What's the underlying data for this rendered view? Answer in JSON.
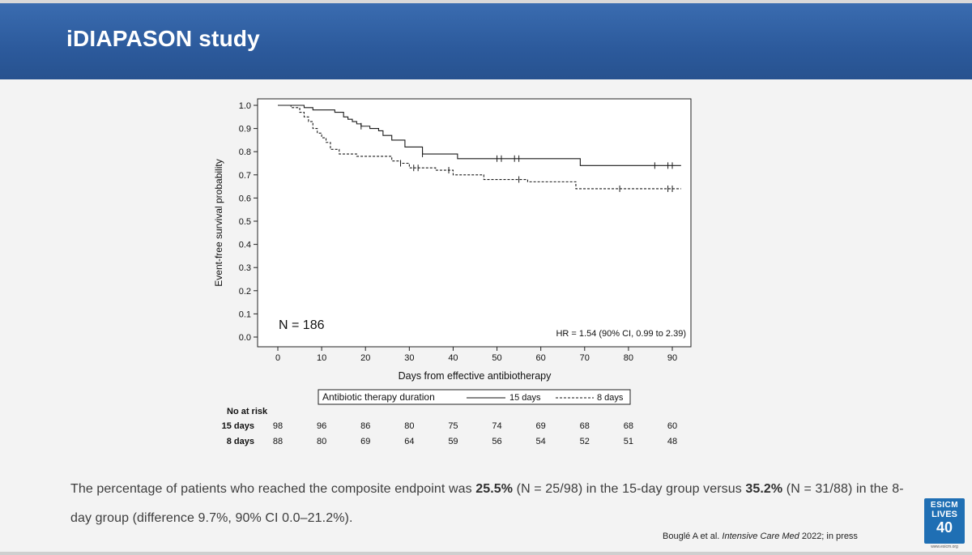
{
  "slide": {
    "title": "iDIAPASON study"
  },
  "chart_data": {
    "type": "line",
    "step": true,
    "ylabel": "Event-free survival probability",
    "xlabel": "Days from effective antibiotherapy",
    "ylim": [
      0.0,
      1.0
    ],
    "xlim": [
      -5,
      92
    ],
    "yticks": [
      "0.0",
      "0.1",
      "0.2",
      "0.3",
      "0.4",
      "0.5",
      "0.6",
      "0.7",
      "0.8",
      "0.9",
      "1.0"
    ],
    "xticks": [
      "0",
      "10",
      "20",
      "30",
      "40",
      "50",
      "60",
      "70",
      "80",
      "90"
    ],
    "annotation_n": "N = 186",
    "annotation_hr": "HR = 1.54 (90% CI, 0.99 to 2.39)",
    "legend_title": "Antibiotic therapy duration",
    "series": [
      {
        "name": "15 days",
        "style": "solid",
        "x": [
          0,
          3,
          6,
          8,
          10,
          13,
          15,
          16,
          17,
          18,
          19,
          21,
          23,
          24,
          26,
          29,
          33,
          41,
          69,
          92
        ],
        "y": [
          1.0,
          1.0,
          0.99,
          0.98,
          0.98,
          0.97,
          0.95,
          0.94,
          0.93,
          0.92,
          0.91,
          0.9,
          0.89,
          0.87,
          0.85,
          0.82,
          0.79,
          0.77,
          0.74,
          0.74
        ],
        "censor_x": [
          19,
          33,
          50,
          51,
          54,
          55,
          86,
          89,
          90
        ]
      },
      {
        "name": "8 days",
        "style": "dashed",
        "x": [
          0,
          3,
          5,
          6,
          7,
          8,
          9,
          10,
          11,
          12,
          14,
          18,
          26,
          28,
          30,
          36,
          40,
          47,
          57,
          68,
          92
        ],
        "y": [
          1.0,
          0.99,
          0.97,
          0.95,
          0.93,
          0.9,
          0.88,
          0.86,
          0.84,
          0.81,
          0.79,
          0.78,
          0.76,
          0.75,
          0.73,
          0.72,
          0.7,
          0.68,
          0.67,
          0.64,
          0.64
        ],
        "censor_x": [
          28,
          31,
          32,
          39,
          55,
          78,
          89,
          90
        ]
      }
    ]
  },
  "risk_table": {
    "header": "No at risk",
    "rows": [
      {
        "label": "15 days",
        "values": [
          "98",
          "96",
          "86",
          "80",
          "75",
          "74",
          "69",
          "68",
          "68",
          "60"
        ]
      },
      {
        "label": "8 days",
        "values": [
          "88",
          "80",
          "69",
          "64",
          "59",
          "56",
          "54",
          "52",
          "51",
          "48"
        ]
      }
    ]
  },
  "summary": {
    "p1": "The percentage of patients who reached the composite endpoint was ",
    "b1": "25.5%",
    "p2": " (N = 25/98) in the 15-day group versus ",
    "b2": "35.2%",
    "p3": " (N = 31/88) in the 8-day group (difference 9.7%, 90% CI 0.0–21.2%)."
  },
  "citation": {
    "authors": "Bouglé A et al. ",
    "journal": "Intensive Care Med",
    "rest": " 2022; in press"
  },
  "logo": {
    "line1": "ESICM",
    "line2": "LIVES",
    "line3": "40",
    "url": "www.esicm.org"
  },
  "colors": {
    "title_bar": "#2c5a9c",
    "line": "#1a1a1a"
  }
}
